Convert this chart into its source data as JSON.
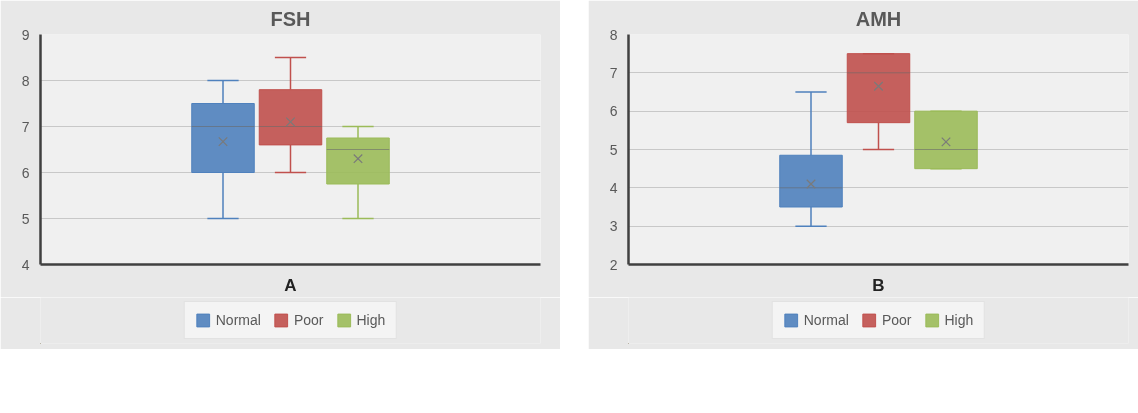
{
  "chart_data": [
    {
      "type": "box",
      "title": "FSH",
      "categories": [
        "A"
      ],
      "ylim": [
        4,
        9
      ],
      "yticks": [
        4,
        5,
        6,
        7,
        8,
        9
      ],
      "grid": "y",
      "legend": "bottom",
      "series": [
        {
          "name": "Normal",
          "color": "#4f81bd",
          "boxes": [
            {
              "low": 5,
              "q1": 6,
              "median": 7,
              "q3": 7.5,
              "high": 8,
              "mean": 6.67
            }
          ]
        },
        {
          "name": "Poor",
          "color": "#c0504d",
          "boxes": [
            {
              "low": 6,
              "q1": 6.6,
              "median": 7,
              "q3": 7.8,
              "high": 8.5,
              "mean": 7.1
            }
          ]
        },
        {
          "name": "High",
          "color": "#9bbb59",
          "boxes": [
            {
              "low": 5,
              "q1": 5.75,
              "median": 6.5,
              "q3": 6.75,
              "high": 7,
              "mean": 6.3
            }
          ]
        }
      ]
    },
    {
      "type": "box",
      "title": "AMH",
      "categories": [
        "B"
      ],
      "ylim": [
        2,
        8
      ],
      "yticks": [
        2,
        3,
        4,
        5,
        6,
        7,
        8
      ],
      "grid": "y",
      "legend": "bottom",
      "series": [
        {
          "name": "Normal",
          "color": "#4f81bd",
          "boxes": [
            {
              "low": 3,
              "q1": 3.5,
              "median": 4,
              "q3": 4.85,
              "high": 6.5,
              "mean": 4.1
            }
          ]
        },
        {
          "name": "Poor",
          "color": "#c0504d",
          "boxes": [
            {
              "low": 5,
              "q1": 5.7,
              "median": 7,
              "q3": 7.5,
              "high": 7.5,
              "mean": 6.65
            }
          ]
        },
        {
          "name": "High",
          "color": "#9bbb59",
          "boxes": [
            {
              "low": 4.5,
              "q1": 4.5,
              "median": 5,
              "q3": 6,
              "high": 6,
              "mean": 5.2
            }
          ]
        }
      ]
    }
  ]
}
